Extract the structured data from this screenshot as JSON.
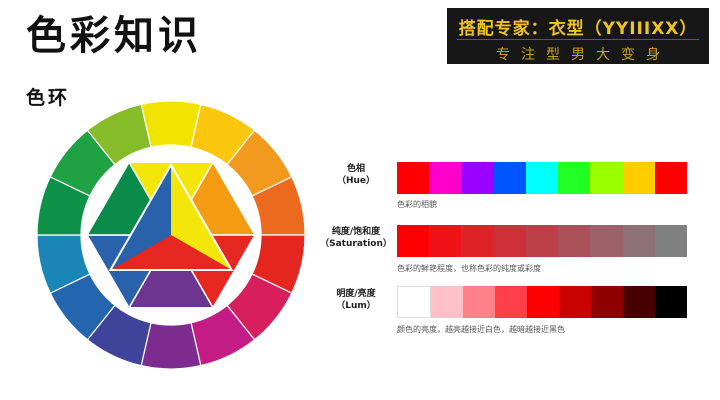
{
  "page": {
    "title": "色彩知识"
  },
  "brand": {
    "name": "搭配专家：衣型（YYIIIXX）",
    "tagline": "专注型男大变身",
    "text_color": "#f0c224",
    "background": "#171717"
  },
  "section": {
    "title": "色环"
  },
  "color_wheel": {
    "outer_ring": [
      "#f2e200",
      "#fbc70e",
      "#f19a1e",
      "#ec6a1e",
      "#e3261f",
      "#d81f5d",
      "#c31c85",
      "#7c2c8f",
      "#3f4399",
      "#2466ad",
      "#1a86b7",
      "#0d9148",
      "#1fa244",
      "#86bb2a"
    ],
    "inner_hexagon": [
      "#f4e60b",
      "#f49b12",
      "#e52621",
      "#6e3590",
      "#2a61ab",
      "#0a8b49"
    ],
    "inner_triangle": [
      "#f4e60b",
      "#e52621",
      "#2a61ab"
    ]
  },
  "rows": [
    {
      "label_line1": "色相",
      "label_line2": "（Hue）",
      "caption": "色彩的相貌",
      "swatches": [
        "#ff0000",
        "#ff00cc",
        "#9900ff",
        "#0055ff",
        "#00ffff",
        "#22ff22",
        "#99ff00",
        "#ffcc00",
        "#ff0000"
      ]
    },
    {
      "label_line1": "纯度/饱和度",
      "label_line2": "（Saturation）",
      "caption": "色彩的鲜艳程度，也称色彩的纯度或彩度",
      "swatches": [
        "#ff0000",
        "#ee1118",
        "#dd2228",
        "#cc3038",
        "#bb4048",
        "#aa5058",
        "#9c6068",
        "#8e7078",
        "#808080"
      ]
    },
    {
      "label_line1": "明度/亮度",
      "label_line2": "（Lum）",
      "caption": "颜色的亮度，越亮越接近白色，越暗越接近黑色",
      "swatches": [
        "#ffffff",
        "#ffc0c8",
        "#ff8088",
        "#ff4048",
        "#ff0000",
        "#c80000",
        "#900000",
        "#480000",
        "#000000"
      ]
    }
  ]
}
